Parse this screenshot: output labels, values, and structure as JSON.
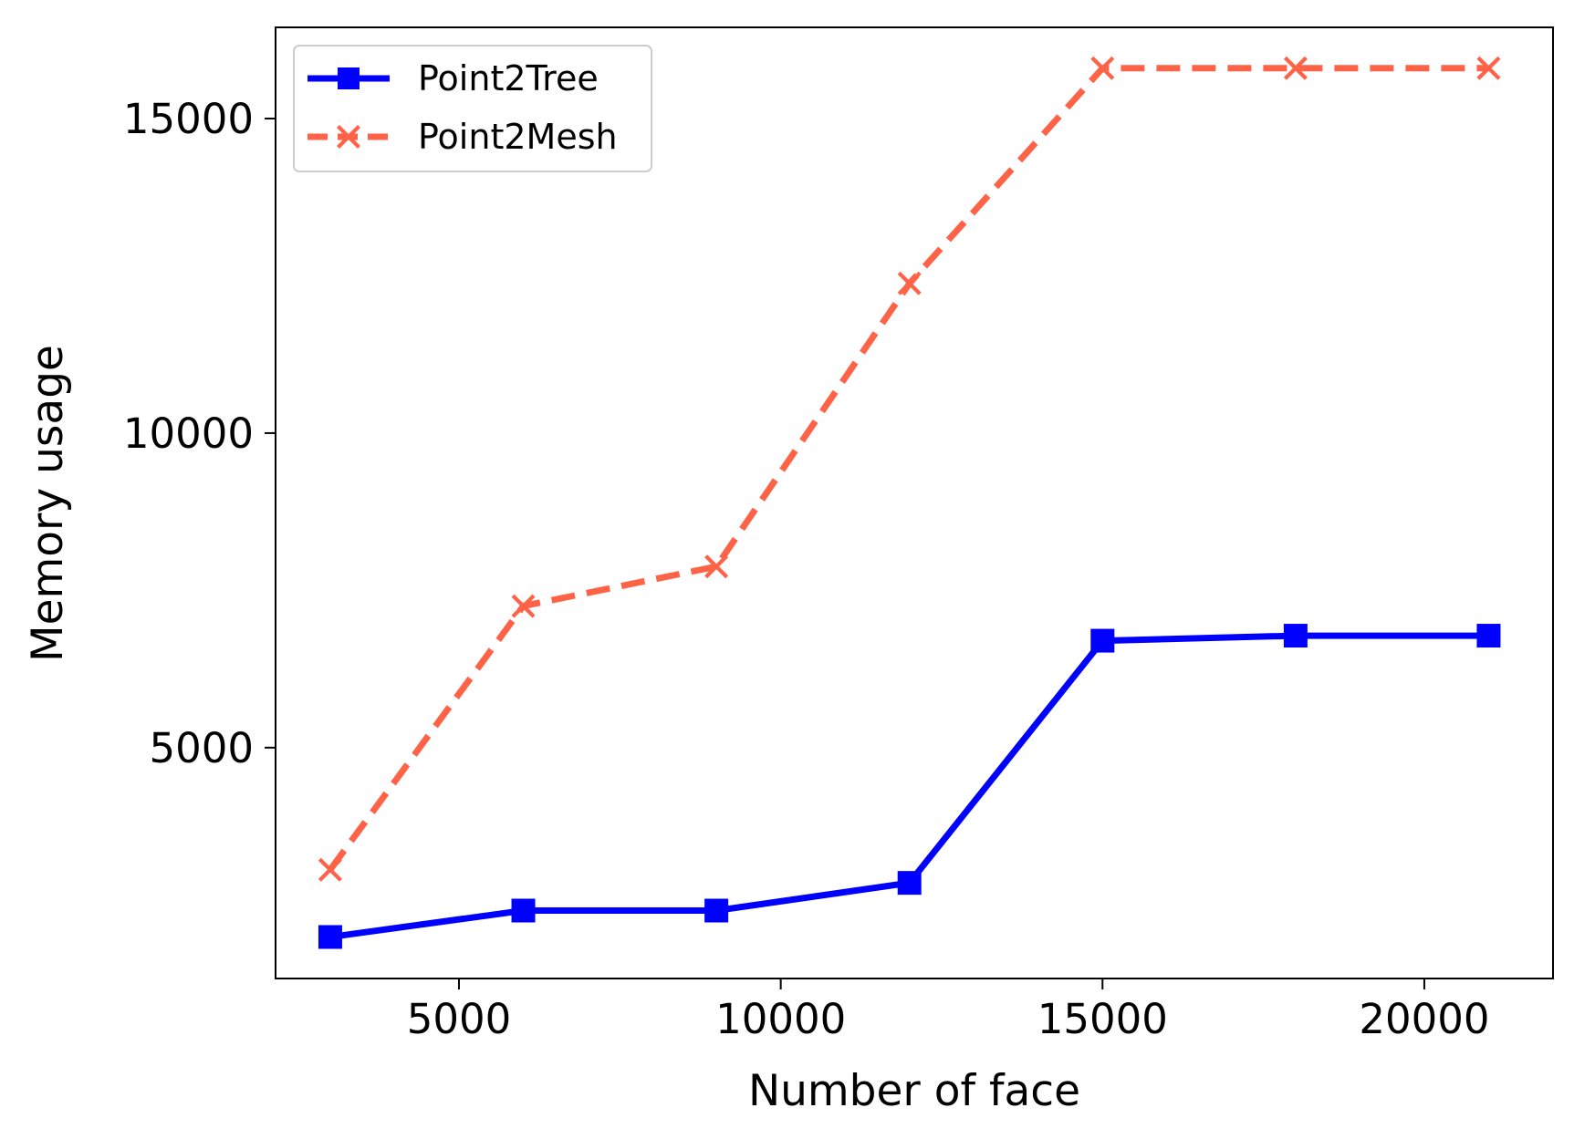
{
  "chart_data": {
    "type": "line",
    "title": "",
    "xlabel": "Number of face",
    "ylabel": "Memory usage",
    "xlim": [
      2150,
      22000
    ],
    "ylim": [
      1330,
      16450
    ],
    "xticks": [
      5000,
      10000,
      15000,
      20000
    ],
    "yticks": [
      5000,
      10000,
      15000
    ],
    "xtick_labels": [
      "5000",
      "10000",
      "15000",
      "20000"
    ],
    "ytick_labels": [
      "5000",
      "10000",
      "15000"
    ],
    "x": [
      3000,
      6000,
      9000,
      12000,
      15000,
      18000,
      21000
    ],
    "grid": false,
    "legend_position": "upper-left",
    "series": [
      {
        "name": "Point2Tree",
        "values": [
          1990,
          2410,
          2410,
          2850,
          6700,
          6780,
          6780
        ],
        "color": "#0000ff",
        "line_style": "solid",
        "marker": "square"
      },
      {
        "name": "Point2Mesh",
        "values": [
          3060,
          7250,
          7880,
          12380,
          15800,
          15800,
          15800
        ],
        "color": "#ff6347",
        "line_style": "dashed",
        "marker": "x"
      }
    ]
  }
}
